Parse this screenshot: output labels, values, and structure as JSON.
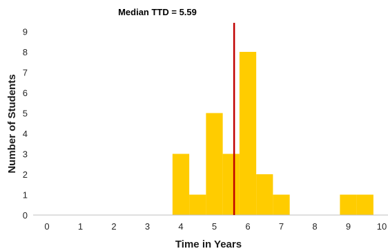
{
  "chart_data": {
    "type": "bar",
    "title": "",
    "annotation": "Median TTD = 5.59",
    "xlabel": "Time in Years",
    "ylabel": "Number of Students",
    "xlim": [
      0,
      10
    ],
    "ylim": [
      0,
      9
    ],
    "x_ticks": [
      "0",
      "1",
      "2",
      "3",
      "4",
      "5",
      "6",
      "7",
      "8",
      "9",
      "10"
    ],
    "y_ticks": [
      "0",
      "1",
      "2",
      "3",
      "4",
      "5",
      "6",
      "7",
      "8",
      "9"
    ],
    "bin_width": 0.5,
    "bins": [
      {
        "start": 3.75,
        "value": 3
      },
      {
        "start": 4.25,
        "value": 1
      },
      {
        "start": 4.75,
        "value": 5
      },
      {
        "start": 5.25,
        "value": 3
      },
      {
        "start": 5.75,
        "value": 8
      },
      {
        "start": 6.25,
        "value": 2
      },
      {
        "start": 6.75,
        "value": 1
      },
      {
        "start": 8.75,
        "value": 1
      },
      {
        "start": 9.25,
        "value": 1
      }
    ],
    "median": 5.59,
    "grid": false,
    "colors": {
      "bars": "#ffcc00",
      "median_line": "#c00000",
      "axis": "#bfbfbf"
    }
  }
}
